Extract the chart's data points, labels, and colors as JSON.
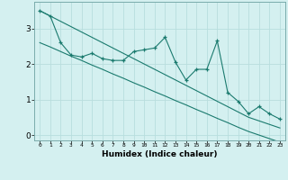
{
  "xlabel": "Humidex (Indice chaleur)",
  "ylabel": "",
  "background_color": "#d4f0f0",
  "line_color": "#1a7a6e",
  "grid_color": "#b8dede",
  "x_data": [
    0,
    1,
    2,
    3,
    4,
    5,
    6,
    7,
    8,
    9,
    10,
    11,
    12,
    13,
    14,
    15,
    16,
    17,
    18,
    19,
    20,
    21,
    22,
    23
  ],
  "y_data": [
    3.5,
    3.35,
    2.6,
    2.25,
    2.2,
    2.3,
    2.15,
    2.1,
    2.1,
    2.35,
    2.4,
    2.45,
    2.75,
    2.05,
    1.55,
    1.85,
    1.85,
    2.65,
    1.2,
    0.95,
    0.6,
    0.8,
    0.6,
    0.45
  ],
  "trend_upper": [
    3.5,
    3.35,
    3.2,
    3.05,
    2.9,
    2.75,
    2.6,
    2.45,
    2.3,
    2.15,
    2.0,
    1.85,
    1.7,
    1.55,
    1.4,
    1.25,
    1.1,
    0.95,
    0.8,
    0.65,
    0.5,
    0.4,
    0.3,
    0.2
  ],
  "trend_lower": [
    2.6,
    2.48,
    2.35,
    2.22,
    2.1,
    1.97,
    1.85,
    1.72,
    1.6,
    1.47,
    1.35,
    1.22,
    1.1,
    0.97,
    0.85,
    0.72,
    0.6,
    0.47,
    0.35,
    0.22,
    0.1,
    0.0,
    -0.1,
    -0.2
  ],
  "ylim": [
    -0.15,
    3.75
  ],
  "xlim": [
    -0.5,
    23.5
  ],
  "yticks": [
    0,
    1,
    2,
    3
  ],
  "xtick_labels": [
    "0",
    "1",
    "2",
    "3",
    "4",
    "5",
    "6",
    "7",
    "8",
    "9",
    "10",
    "11",
    "12",
    "13",
    "14",
    "15",
    "16",
    "17",
    "18",
    "19",
    "20",
    "21",
    "22",
    "23"
  ],
  "marker": "+"
}
